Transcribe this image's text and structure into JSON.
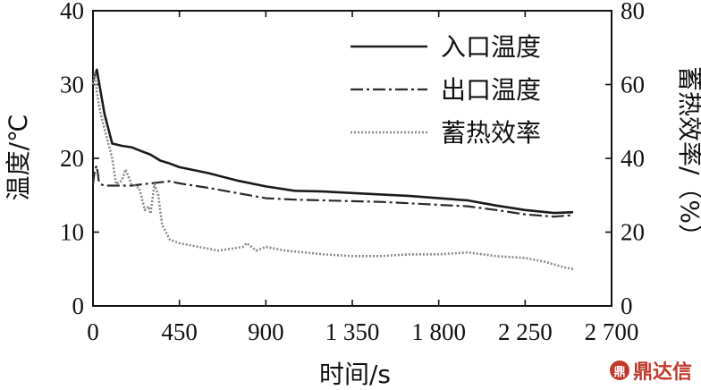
{
  "chart_data": {
    "type": "line",
    "xlabel": "时间/s",
    "ylabel_left": "温度/℃",
    "ylabel_right": "蓄热效率/（%）",
    "xlim": [
      0,
      2700
    ],
    "ylim_left": [
      0,
      40
    ],
    "ylim_right": [
      0,
      80
    ],
    "x_ticks": [
      0,
      450,
      900,
      1350,
      1800,
      2250,
      2700
    ],
    "x_tick_labels": [
      "0",
      "450",
      "900",
      "1 350",
      "1 800",
      "2 250",
      "2 700"
    ],
    "y_left_ticks": [
      "0",
      "10",
      "20",
      "30",
      "40"
    ],
    "y_right_ticks": [
      "0",
      "20",
      "40",
      "60",
      "80"
    ],
    "legend_position": "top-right",
    "series": [
      {
        "name": "入口温度",
        "axis": "left",
        "style": "solid",
        "color": "#1a1a1a",
        "x": [
          0,
          20,
          40,
          60,
          80,
          100,
          150,
          200,
          250,
          300,
          350,
          400,
          450,
          600,
          750,
          900,
          1050,
          1200,
          1350,
          1500,
          1650,
          1800,
          1950,
          2100,
          2250,
          2400,
          2500
        ],
        "y": [
          30.5,
          32,
          29,
          26,
          24,
          22,
          21.7,
          21.5,
          21,
          20.5,
          19.7,
          19.3,
          18.8,
          18,
          17,
          16.2,
          15.6,
          15.5,
          15.3,
          15.1,
          14.9,
          14.6,
          14.3,
          13.6,
          13,
          12.6,
          12.7
        ]
      },
      {
        "name": "出口温度",
        "axis": "left",
        "style": "dashdot",
        "color": "#2a2a2a",
        "x": [
          0,
          10,
          20,
          30,
          40,
          60,
          100,
          200,
          300,
          400,
          450,
          600,
          750,
          900,
          1050,
          1200,
          1350,
          1500,
          1650,
          1800,
          1950,
          2100,
          2250,
          2400,
          2500
        ],
        "y": [
          16.5,
          18.5,
          19,
          17,
          16.5,
          16.3,
          16.3,
          16.3,
          16.6,
          16.9,
          16.6,
          16,
          15.3,
          14.6,
          14.4,
          14.3,
          14.2,
          14.1,
          13.9,
          13.7,
          13.5,
          13,
          12.4,
          12.1,
          12.3
        ]
      },
      {
        "name": "蓄热效率",
        "axis": "right",
        "style": "dotted",
        "color": "#888888",
        "x": [
          0,
          10,
          20,
          30,
          40,
          60,
          80,
          100,
          120,
          150,
          170,
          200,
          240,
          270,
          290,
          300,
          320,
          340,
          360,
          400,
          450,
          550,
          650,
          720,
          780,
          800,
          850,
          900,
          1000,
          1100,
          1200,
          1350,
          1500,
          1650,
          1800,
          1950,
          2100,
          2250,
          2350,
          2450,
          2500
        ],
        "y": [
          60,
          63,
          58,
          55,
          52,
          48,
          44,
          40,
          33,
          34,
          37,
          33,
          32,
          26,
          27,
          25,
          33,
          30,
          22,
          18,
          17,
          16,
          15,
          15.5,
          16,
          17,
          15,
          16,
          15,
          14.5,
          14,
          13.5,
          13.5,
          14,
          14,
          14.5,
          13.5,
          13,
          12,
          10.5,
          10
        ]
      }
    ]
  },
  "watermark": {
    "logo_text": "鼎",
    "text": "鼎达信"
  }
}
